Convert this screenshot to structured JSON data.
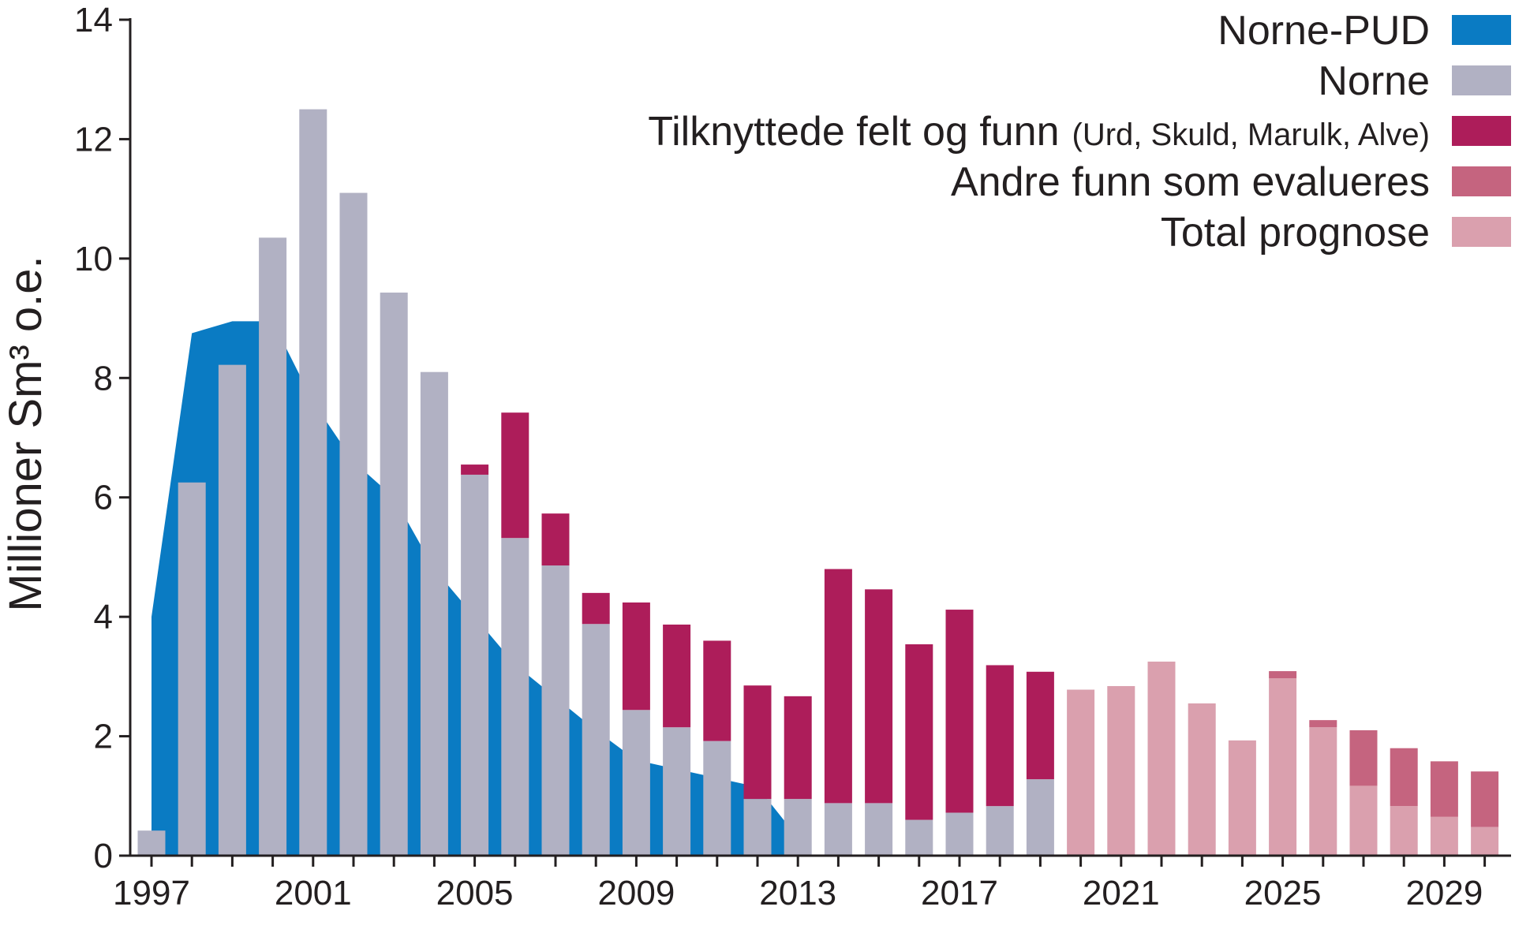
{
  "chart_data": {
    "type": "bar",
    "ylabel": "Millioner Sm³ o.e.",
    "ylim": [
      0,
      14
    ],
    "yticks": [
      "0",
      "2",
      "4",
      "6",
      "8",
      "10",
      "12",
      "14"
    ],
    "xticks": [
      "1997",
      "2001",
      "2005",
      "2009",
      "2013",
      "2017",
      "2021",
      "2025",
      "2029"
    ],
    "x": [
      1997,
      1998,
      1999,
      2000,
      2001,
      2002,
      2003,
      2004,
      2005,
      2006,
      2007,
      2008,
      2009,
      2010,
      2011,
      2012,
      2013,
      2014,
      2015,
      2016,
      2017,
      2018,
      2019,
      2020,
      2021,
      2022,
      2023,
      2024,
      2025,
      2026,
      2027,
      2028,
      2029,
      2030
    ],
    "series": [
      {
        "name": "Norne-PUD",
        "kind": "area",
        "color": "#0a7bc3",
        "x": [
          1997,
          1998,
          1999,
          2000,
          2001,
          2002,
          2003,
          2004,
          2005,
          2006,
          2007,
          2008,
          2009,
          2010,
          2011,
          2012,
          2013
        ],
        "values": [
          4.0,
          8.75,
          8.95,
          8.95,
          7.6,
          6.6,
          6.0,
          4.8,
          4.0,
          3.2,
          2.65,
          2.1,
          1.6,
          1.45,
          1.3,
          1.15,
          0.3
        ]
      },
      {
        "name": "Norne",
        "kind": "bar",
        "color": "#b1b1c3",
        "values": [
          0.42,
          6.25,
          8.22,
          10.35,
          12.5,
          11.1,
          9.43,
          8.1,
          6.38,
          5.32,
          4.86,
          3.88,
          2.44,
          2.15,
          1.92,
          0.95,
          0.95,
          0.88,
          0.88,
          0.6,
          0.72,
          0.83,
          1.28,
          null,
          null,
          null,
          null,
          null,
          null,
          null,
          null,
          null,
          null,
          null
        ]
      },
      {
        "name": "Tilknyttede felt og funn",
        "note": "(Urd, Skuld, Marulk, Alve)",
        "kind": "bar",
        "color": "#ad1d5a",
        "values": [
          0,
          0,
          0,
          0,
          0,
          0,
          0,
          0,
          0.17,
          2.1,
          0.87,
          0.52,
          1.8,
          1.72,
          1.68,
          1.9,
          1.72,
          3.92,
          3.58,
          2.94,
          3.4,
          2.36,
          1.8,
          null,
          null,
          null,
          null,
          null,
          null,
          null,
          null,
          null,
          null,
          null
        ]
      },
      {
        "name": "Andre funn som evalueres",
        "kind": "bar",
        "color": "#c5647f",
        "values": [
          null,
          null,
          null,
          null,
          null,
          null,
          null,
          null,
          null,
          null,
          null,
          null,
          null,
          null,
          null,
          null,
          null,
          null,
          null,
          null,
          null,
          null,
          null,
          0,
          0,
          0,
          0,
          0,
          0.12,
          0.12,
          0.93,
          0.97,
          0.93,
          0.93
        ]
      },
      {
        "name": "Total prognose",
        "kind": "bar",
        "color": "#daa0ae",
        "values": [
          null,
          null,
          null,
          null,
          null,
          null,
          null,
          null,
          null,
          null,
          null,
          null,
          null,
          null,
          null,
          null,
          null,
          null,
          null,
          null,
          null,
          null,
          null,
          2.78,
          2.84,
          3.25,
          2.55,
          1.93,
          2.97,
          2.15,
          1.17,
          0.83,
          0.65,
          0.48
        ]
      }
    ],
    "legend_position": "top-right",
    "grid": false
  }
}
